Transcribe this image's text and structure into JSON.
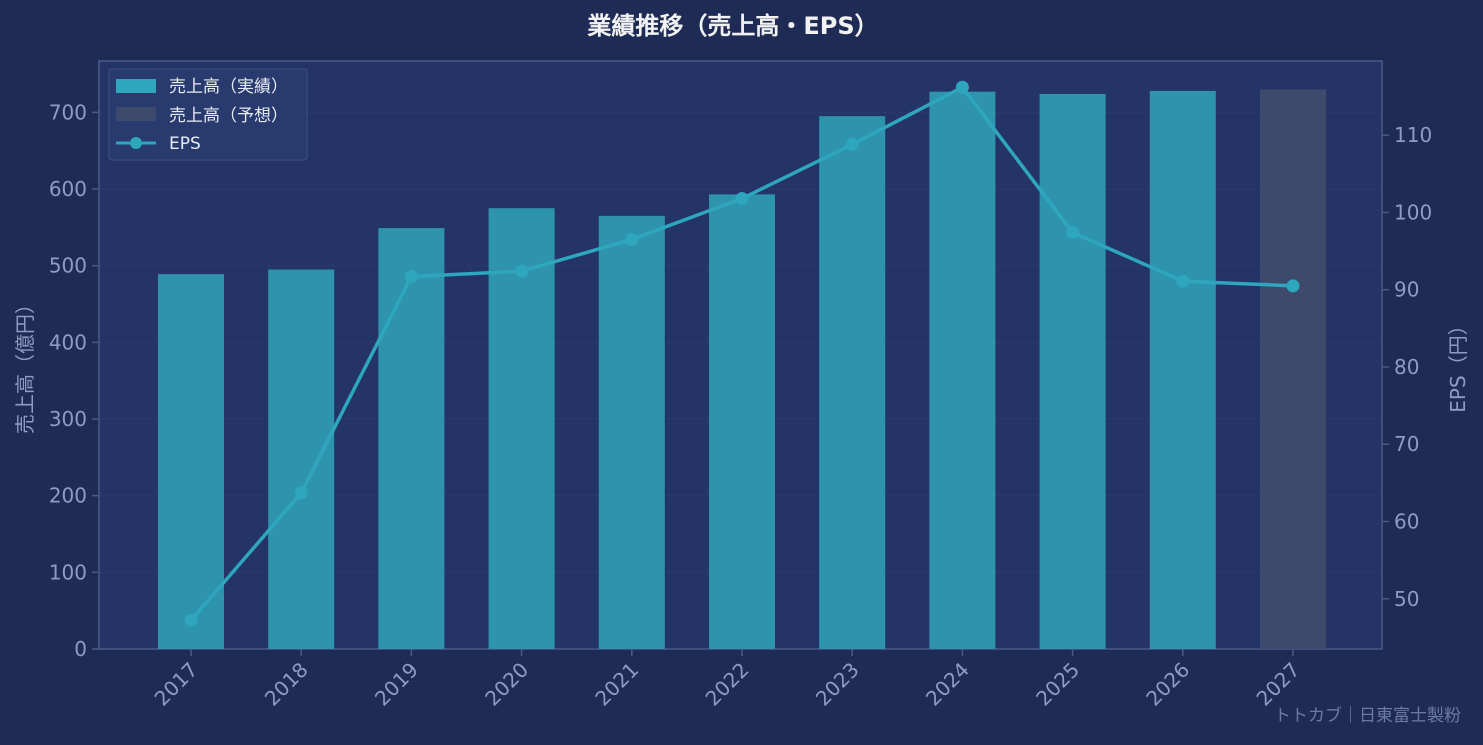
{
  "chart_data": {
    "type": "bar+line",
    "title": "業績推移（売上高・EPS）",
    "categories": [
      "2017",
      "2018",
      "2019",
      "2020",
      "2021",
      "2022",
      "2023",
      "2024",
      "2025",
      "2026",
      "2027"
    ],
    "series": [
      {
        "name": "売上高（実績）",
        "type": "bar",
        "axis": "left",
        "color": "#2e94ae",
        "values": [
          489,
          495,
          549,
          575,
          565,
          593,
          695,
          727,
          724,
          728,
          null
        ]
      },
      {
        "name": "売上高（予想）",
        "type": "bar",
        "axis": "left",
        "color": "#3d4a6b",
        "values": [
          null,
          null,
          null,
          null,
          null,
          null,
          null,
          null,
          null,
          null,
          730
        ]
      },
      {
        "name": "EPS",
        "type": "line",
        "axis": "right",
        "color": "#2ea6be",
        "values": [
          47.2,
          63.7,
          91.7,
          92.4,
          96.5,
          101.8,
          108.8,
          116.2,
          97.4,
          91.1,
          90.5
        ]
      }
    ],
    "ylabel": "売上高（億円）",
    "y2label": "EPS（円）",
    "ylim": [
      0,
      767
    ],
    "y2lim": [
      43.5,
      119.6
    ],
    "yticks": [
      0,
      100,
      200,
      300,
      400,
      500,
      600,
      700
    ],
    "y2ticks": [
      50,
      60,
      70,
      80,
      90,
      100,
      110
    ],
    "grid": true,
    "legend": "top-left",
    "watermark": "トトカブ｜日東富士製粉",
    "colors": {
      "background": "#1e2b55",
      "plot_background": "#243466",
      "axis": "#4a5a88",
      "tick_text": "#8e9cc0",
      "title_text": "#f2f2f2",
      "legend_text": "#e8ecf5",
      "grid": "#2f3f72"
    }
  }
}
